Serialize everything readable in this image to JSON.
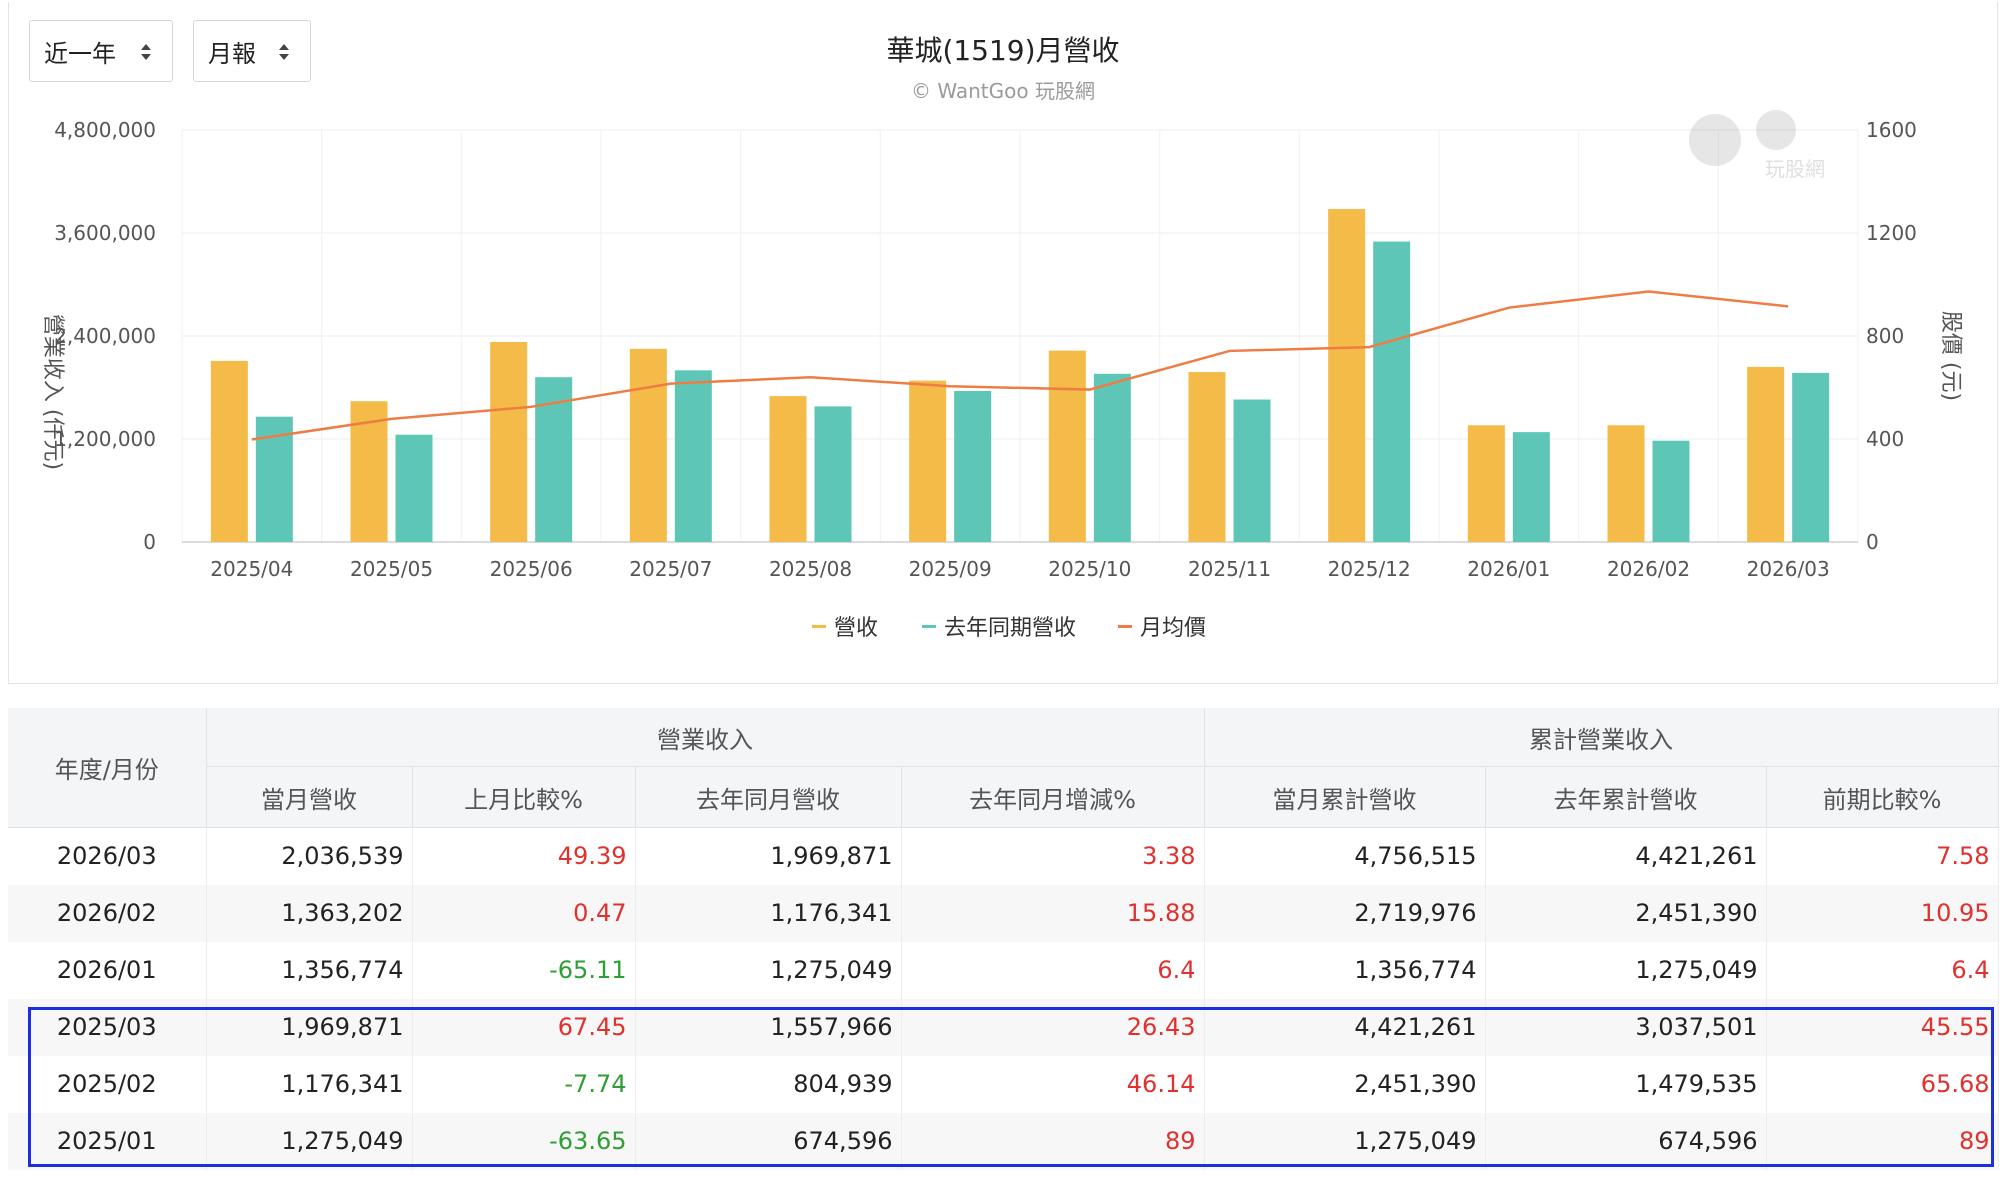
{
  "controls": {
    "range_select": "近一年",
    "period_select": "月報"
  },
  "chart_data": {
    "type": "bar",
    "title": "華城(1519)月營收",
    "subtitle": "© WantGoo 玩股網",
    "watermark": "玩股網",
    "categories": [
      "2025/04",
      "2025/05",
      "2025/06",
      "2025/07",
      "2025/08",
      "2025/09",
      "2025/10",
      "2025/11",
      "2025/12",
      "2026/01",
      "2026/02",
      "2026/03"
    ],
    "series": [
      {
        "name": "營收",
        "type": "bar",
        "axis": "left",
        "color": "#f4bb48",
        "values": [
          2110000,
          1640000,
          2330000,
          2250000,
          1700000,
          1880000,
          2230000,
          1980000,
          3880000,
          1360000,
          1360000,
          2040000
        ]
      },
      {
        "name": "去年同期營收",
        "type": "bar",
        "axis": "left",
        "color": "#5ec6b6",
        "values": [
          1460000,
          1250000,
          1920000,
          2000000,
          1580000,
          1760000,
          1960000,
          1660000,
          3500000,
          1280000,
          1180000,
          1970000
        ]
      },
      {
        "name": "月均價",
        "type": "line",
        "axis": "right",
        "color": "#ee7d45",
        "values": [
          398,
          478,
          525,
          615,
          640,
          605,
          592,
          742,
          757,
          910,
          973,
          915
        ]
      }
    ],
    "ylabel": "營業收入 (仟元)",
    "y2label": "股價 (元)",
    "ylim": [
      0,
      4800000
    ],
    "y2lim": [
      0,
      1600
    ],
    "yticks": [
      "0",
      "1,200,000",
      "2,400,000",
      "3,600,000",
      "4,800,000"
    ],
    "y2ticks": [
      "0",
      "400",
      "800",
      "1200",
      "1600"
    ],
    "grid": true,
    "legend": "bottom-center"
  },
  "table": {
    "date_header": "年度/月份",
    "group1": "營業收入",
    "group2": "累計營業收入",
    "columns": [
      "當月營收",
      "上月比較%",
      "去年同月營收",
      "去年同月增減%",
      "當月累計營收",
      "去年累計營收",
      "前期比較%"
    ],
    "rows": [
      [
        "2026/03",
        "2,036,539",
        "49.39",
        "1,969,871",
        "3.38",
        "4,756,515",
        "4,421,261",
        "7.58"
      ],
      [
        "2026/02",
        "1,363,202",
        "0.47",
        "1,176,341",
        "15.88",
        "2,719,976",
        "2,451,390",
        "10.95"
      ],
      [
        "2026/01",
        "1,356,774",
        "-65.11",
        "1,275,049",
        "6.4",
        "1,356,774",
        "1,275,049",
        "6.4"
      ],
      [
        "2025/03",
        "1,969,871",
        "67.45",
        "1,557,966",
        "26.43",
        "4,421,261",
        "3,037,501",
        "45.55"
      ],
      [
        "2025/02",
        "1,176,341",
        "-7.74",
        "804,939",
        "46.14",
        "2,451,390",
        "1,479,535",
        "65.68"
      ],
      [
        "2025/01",
        "1,275,049",
        "-63.65",
        "674,596",
        "89",
        "1,275,049",
        "674,596",
        "89"
      ]
    ]
  },
  "colors": {
    "revenue": "#f4bb48",
    "last_year": "#5ec6b6",
    "avg_price": "#ee7d45",
    "positive": "#e0312f",
    "negative": "#2f9e35",
    "highlight": "#1b2fe0"
  }
}
